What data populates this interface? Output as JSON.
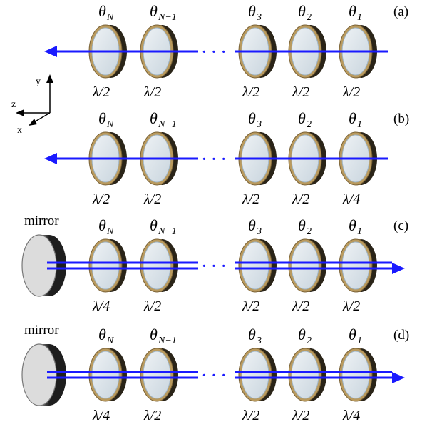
{
  "axes": {
    "y": "y",
    "z": "z",
    "x": "x"
  },
  "mirror_label": "mirror",
  "dots": "· · ·",
  "rows": [
    {
      "panel": "(a)",
      "mirror": false,
      "thetas": [
        {
          "base": "θ",
          "sub": "N"
        },
        {
          "base": "θ",
          "sub": "N−1"
        },
        {
          "base": "θ",
          "sub": "3"
        },
        {
          "base": "θ",
          "sub": "2"
        },
        {
          "base": "θ",
          "sub": "1"
        }
      ],
      "plates": [
        "λ/2",
        "λ/2",
        "λ/2",
        "λ/2",
        "λ/2"
      ]
    },
    {
      "panel": "(b)",
      "mirror": false,
      "thetas": [
        {
          "base": "θ",
          "sub": "N"
        },
        {
          "base": "θ",
          "sub": "N−1"
        },
        {
          "base": "θ",
          "sub": "3"
        },
        {
          "base": "θ",
          "sub": "2"
        },
        {
          "base": "θ",
          "sub": "1"
        }
      ],
      "plates": [
        "λ/2",
        "λ/2",
        "λ/2",
        "λ/2",
        "λ/4"
      ]
    },
    {
      "panel": "(c)",
      "mirror": true,
      "thetas": [
        {
          "base": "θ",
          "sub": "N"
        },
        {
          "base": "θ",
          "sub": "N−1"
        },
        {
          "base": "θ",
          "sub": "3"
        },
        {
          "base": "θ",
          "sub": "2"
        },
        {
          "base": "θ",
          "sub": "1"
        }
      ],
      "plates": [
        "λ/4",
        "λ/2",
        "λ/2",
        "λ/2",
        "λ/2"
      ]
    },
    {
      "panel": "(d)",
      "mirror": true,
      "thetas": [
        {
          "base": "θ",
          "sub": "N"
        },
        {
          "base": "θ",
          "sub": "N−1"
        },
        {
          "base": "θ",
          "sub": "3"
        },
        {
          "base": "θ",
          "sub": "2"
        },
        {
          "base": "θ",
          "sub": "1"
        }
      ],
      "plates": [
        "λ/4",
        "λ/2",
        "λ/2",
        "λ/2",
        "λ/4"
      ]
    }
  ],
  "colors": {
    "beam": "#1a1aff",
    "rim": "#b99a5e",
    "rim_dark": "#2a2418",
    "glass": "#d6e0e8",
    "mirror_face": "#dcdcdc",
    "mirror_rim": "#555555"
  }
}
